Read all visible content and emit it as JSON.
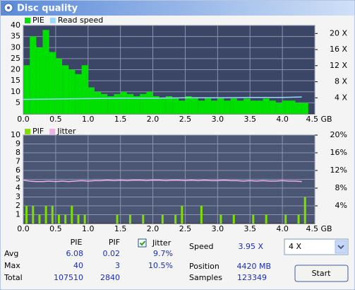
{
  "window": {
    "title": "Disc quality"
  },
  "chart_data": [
    {
      "type": "bar",
      "x": [
        0.0,
        0.1,
        0.2,
        0.3,
        0.4,
        0.5,
        0.6,
        0.7,
        0.8,
        0.9,
        1.0,
        1.1,
        1.2,
        1.3,
        1.4,
        1.5,
        1.6,
        1.7,
        1.8,
        1.9,
        2.0,
        2.1,
        2.2,
        2.3,
        2.4,
        2.5,
        2.6,
        2.7,
        2.8,
        2.9,
        3.0,
        3.1,
        3.2,
        3.3,
        3.4,
        3.5,
        3.6,
        3.7,
        3.8,
        3.9,
        4.0,
        4.1,
        4.2,
        4.3
      ],
      "series": [
        {
          "name": "PIE",
          "color": "#00e000",
          "values": [
            22,
            35,
            30,
            38,
            28,
            25,
            22,
            20,
            18,
            22,
            12,
            10,
            9,
            8,
            9,
            10,
            9,
            8,
            9,
            10,
            8,
            7,
            8,
            7,
            6,
            8,
            7,
            6,
            7,
            6,
            7,
            6,
            7,
            6,
            7,
            6,
            6,
            7,
            6,
            5,
            6,
            6,
            5,
            5
          ]
        },
        {
          "name": "Read speed",
          "color": "#9ad8ff",
          "type": "line",
          "axis": "y2",
          "x": [
            0.0,
            0.5,
            1.0,
            1.5,
            2.0,
            2.5,
            3.0,
            3.5,
            4.0,
            4.3
          ],
          "values": [
            3.6,
            3.7,
            3.8,
            3.9,
            3.9,
            4.0,
            4.0,
            4.1,
            4.1,
            4.2
          ]
        }
      ],
      "xlim": [
        0,
        4.5
      ],
      "xticks": [
        {
          "value": 0,
          "label": "0.0"
        },
        0.5,
        {
          "value": 1,
          "label": "1.0"
        },
        1.5,
        {
          "value": 2,
          "label": "2.0"
        },
        2.5,
        {
          "value": 3,
          "label": "3.0"
        },
        3.5,
        {
          "value": 4,
          "label": "4.0"
        },
        {
          "value": 4.5,
          "label": "4.5 GB"
        }
      ],
      "ylim": [
        0,
        40
      ],
      "yticks": [
        5,
        10,
        15,
        20,
        25,
        30,
        35,
        40
      ],
      "y2lim": [
        0,
        22
      ],
      "y2ticks": [
        {
          "value": 4,
          "label": "4 X"
        },
        {
          "value": 8,
          "label": "8 X"
        },
        {
          "value": 12,
          "label": "12 X"
        },
        {
          "value": 16,
          "label": "16 X"
        },
        {
          "value": 20,
          "label": "20 X"
        }
      ],
      "grid": true
    },
    {
      "type": "bar",
      "x": [
        0.0,
        0.1,
        0.2,
        0.3,
        0.4,
        0.5,
        0.6,
        0.7,
        0.8,
        0.9,
        1.0,
        1.1,
        1.2,
        1.3,
        1.4,
        1.5,
        1.6,
        1.7,
        1.8,
        1.9,
        2.0,
        2.1,
        2.2,
        2.3,
        2.4,
        2.5,
        2.6,
        2.7,
        2.8,
        2.9,
        3.0,
        3.1,
        3.2,
        3.3,
        3.4,
        3.5,
        3.6,
        3.7,
        3.8,
        3.9,
        4.0,
        4.1,
        4.2,
        4.3
      ],
      "series": [
        {
          "name": "PIF",
          "color": "#7ee000",
          "values": [
            2,
            2,
            1,
            2,
            2,
            1,
            1,
            2,
            1,
            1,
            0,
            0,
            0,
            0,
            1,
            0,
            1,
            0,
            1,
            0,
            0,
            1,
            0,
            1,
            2,
            0,
            0,
            2,
            0,
            0,
            1,
            0,
            1,
            0,
            0,
            1,
            0,
            1,
            0,
            0,
            1,
            0,
            1,
            3
          ]
        },
        {
          "name": "Jitter",
          "color": "#f0b0e8",
          "type": "line",
          "axis": "y2",
          "x": [
            0.0,
            0.1,
            0.2,
            0.3,
            0.4,
            0.5,
            0.6,
            0.7,
            0.8,
            0.9,
            1.0,
            1.1,
            1.2,
            1.3,
            1.4,
            1.5,
            1.6,
            1.7,
            1.8,
            1.9,
            2.0,
            2.1,
            2.2,
            2.3,
            2.4,
            2.5,
            2.6,
            2.7,
            2.8,
            2.9,
            3.0,
            3.1,
            3.2,
            3.3,
            3.4,
            3.5,
            3.6,
            3.7,
            3.8,
            3.9,
            4.0,
            4.1,
            4.2,
            4.3
          ],
          "values": [
            9.8,
            9.6,
            9.5,
            9.5,
            9.6,
            9.5,
            9.6,
            9.5,
            9.6,
            9.7,
            9.6,
            9.7,
            9.7,
            9.8,
            9.7,
            9.8,
            9.7,
            9.8,
            9.8,
            9.7,
            9.8,
            9.8,
            9.7,
            9.8,
            9.8,
            9.7,
            9.8,
            9.7,
            9.8,
            9.7,
            9.7,
            9.8,
            9.7,
            9.7,
            9.6,
            9.7,
            9.6,
            9.7,
            9.6,
            9.6,
            9.7,
            9.6,
            9.6,
            9.5
          ]
        }
      ],
      "xlim": [
        0,
        4.5
      ],
      "xticks": [
        {
          "value": 0,
          "label": "0.0"
        },
        0.5,
        {
          "value": 1,
          "label": "1.0"
        },
        1.5,
        {
          "value": 2,
          "label": "2.0"
        },
        2.5,
        {
          "value": 3,
          "label": "3.0"
        },
        3.5,
        {
          "value": 4,
          "label": "4.0"
        },
        {
          "value": 4.5,
          "label": "4.5 GB"
        }
      ],
      "ylim": [
        0,
        10
      ],
      "yticks": [
        1,
        2,
        3,
        4,
        5,
        6,
        7,
        8,
        9,
        10
      ],
      "y2lim": [
        0,
        20
      ],
      "y2ticks": [
        {
          "value": 4,
          "label": "4%"
        },
        {
          "value": 8,
          "label": "8%"
        },
        {
          "value": 12,
          "label": "12%"
        },
        {
          "value": 16,
          "label": "16%"
        },
        {
          "value": 20,
          "label": "20%"
        }
      ],
      "grid": true
    }
  ],
  "stats": {
    "headers": [
      "PIE",
      "PIF",
      "Jitter"
    ],
    "rows": [
      {
        "label": "Avg",
        "pie": 6.08,
        "pif": 0.02,
        "jitter": "9.7%"
      },
      {
        "label": "Max",
        "pie": 40,
        "pif": 3,
        "jitter": "10.5%"
      },
      {
        "label": "Total",
        "pie": 107510,
        "pif": 2840
      }
    ],
    "speed": {
      "label": "Speed",
      "value": "3.95 X"
    },
    "position": {
      "label": "Position",
      "value": "4420 MB"
    },
    "samples": {
      "label": "Samples",
      "value": 123349
    },
    "speed_select": "4 X",
    "start_button": "Start"
  }
}
